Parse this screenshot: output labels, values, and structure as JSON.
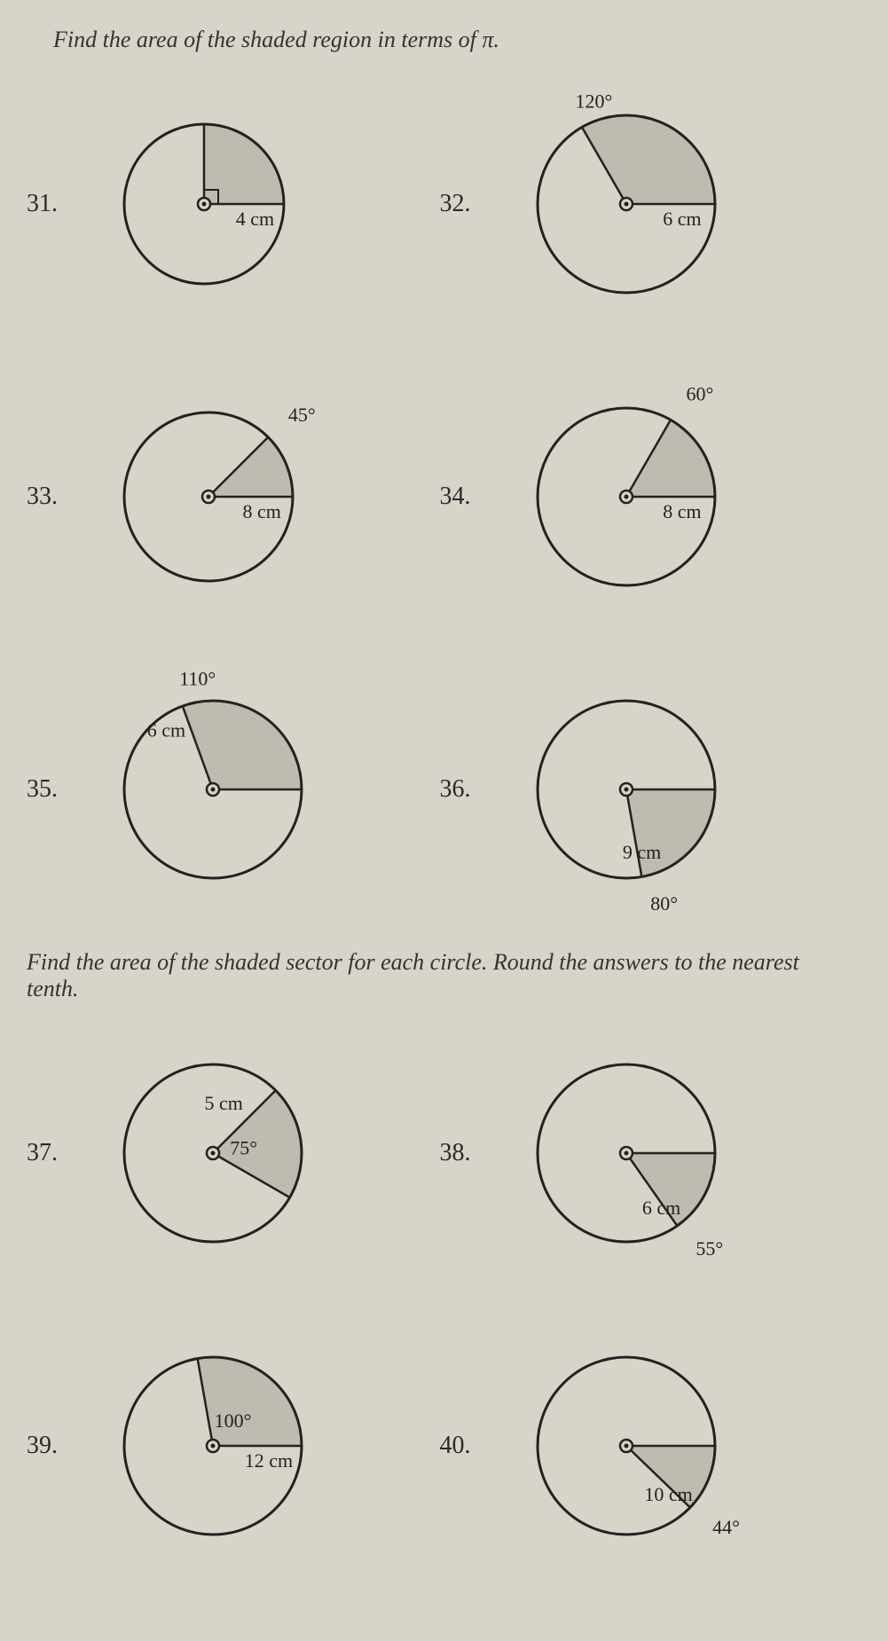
{
  "colors": {
    "page_bg": "#d8d4ca",
    "shade_fill": "#bfbbb0",
    "stroke": "#222222",
    "text": "#2a2a2a"
  },
  "font": {
    "instruction_size": 26,
    "number_size": 28,
    "label_size": 22
  },
  "instr1": "Find the area of the shaded region in terms of π.",
  "instr2": "Find the area of the shaded sector for each circle. Round the answers to the nearest tenth.",
  "p31": {
    "num": "31.",
    "circle_r": 90,
    "sector_start_deg": 0,
    "sector_end_deg": 90,
    "radius_label": "4 cm",
    "angle_label": "",
    "center_marker": true,
    "right_angle_marker": true
  },
  "p32": {
    "num": "32.",
    "circle_r": 100,
    "sector_start_deg": 0,
    "sector_end_deg": 120,
    "radius_label": "6 cm",
    "angle_label": "120°",
    "center_marker": true
  },
  "p33": {
    "num": "33.",
    "circle_r": 95,
    "sector_start_deg": 0,
    "sector_end_deg": 45,
    "radius_label": "8 cm",
    "angle_label": "45°",
    "center_marker": true
  },
  "p34": {
    "num": "34.",
    "circle_r": 100,
    "sector_start_deg": 0,
    "sector_end_deg": 60,
    "radius_label": "8 cm",
    "angle_label": "60°",
    "center_marker": true
  },
  "p35": {
    "num": "35.",
    "circle_r": 100,
    "sector_start_deg": 0,
    "sector_end_deg": 110,
    "radius_label": "6 cm",
    "angle_label": "110°",
    "center_marker": true,
    "radius_label_on_second": true
  },
  "p36": {
    "num": "36.",
    "circle_r": 100,
    "sector_start_deg": -80,
    "sector_end_deg": 0,
    "radius_label": "9 cm",
    "angle_label": "80°",
    "center_marker": true,
    "angle_label_below": true
  },
  "p37": {
    "num": "37.",
    "circle_r": 100,
    "sector_start_deg": -30,
    "sector_end_deg": 45,
    "real_angle": 75,
    "radius_label": "5 cm",
    "angle_label": "75°",
    "center_marker": true,
    "radius_label_on_upper": true,
    "angle_label_center": true
  },
  "p38": {
    "num": "38.",
    "circle_r": 100,
    "sector_start_deg": -55,
    "sector_end_deg": 0,
    "radius_label": "6 cm",
    "angle_label": "55°",
    "center_marker": true,
    "angle_label_below": true
  },
  "p39": {
    "num": "39.",
    "circle_r": 100,
    "sector_start_deg": 0,
    "sector_end_deg": 100,
    "radius_label": "12 cm",
    "angle_label": "100°",
    "center_marker": true,
    "angle_label_center": true
  },
  "p40": {
    "num": "40.",
    "circle_r": 100,
    "sector_start_deg": -44,
    "sector_end_deg": 0,
    "radius_label": "10 cm",
    "angle_label": "44°",
    "center_marker": true,
    "angle_label_below": true
  }
}
